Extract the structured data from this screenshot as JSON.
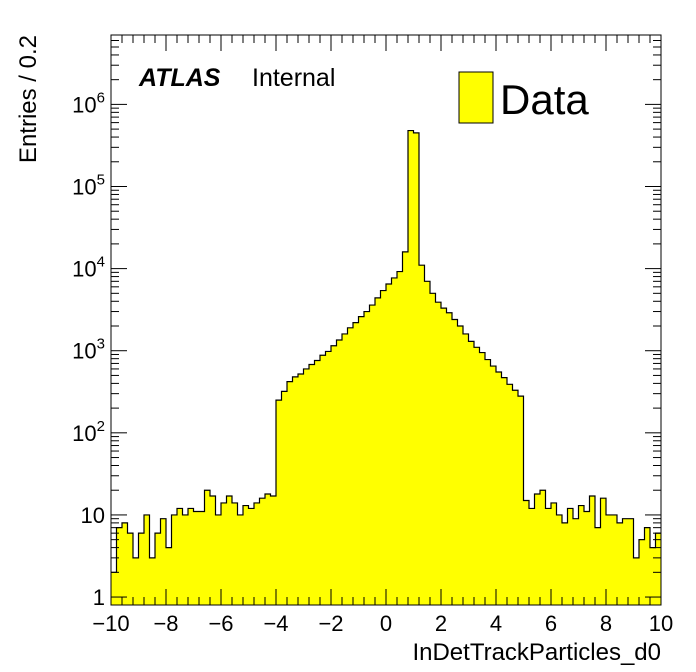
{
  "chart_data": {
    "type": "bar",
    "histogram": true,
    "xlabel": "InDetTrackParticles_d0",
    "ylabel": "Entries / 0.2",
    "yscale": "log",
    "xlim": [
      -10,
      10
    ],
    "ylim": [
      0.8,
      7000000
    ],
    "bin_width": 0.2,
    "fill_color": "#ffff00",
    "line_color": "#000000",
    "x_ticks": [
      "−10",
      "−8",
      "−6",
      "−4",
      "−2",
      "0",
      "2",
      "4",
      "6",
      "8",
      "10"
    ],
    "x_tick_values": [
      -10,
      -8,
      -6,
      -4,
      -2,
      0,
      2,
      4,
      6,
      8,
      10
    ],
    "y_ticks": [
      {
        "value": 1,
        "base": "1",
        "exp": ""
      },
      {
        "value": 10,
        "base": "10",
        "exp": ""
      },
      {
        "value": 100,
        "base": "10",
        "exp": "2"
      },
      {
        "value": 1000,
        "base": "10",
        "exp": "3"
      },
      {
        "value": 10000,
        "base": "10",
        "exp": "4"
      },
      {
        "value": 100000,
        "base": "10",
        "exp": "5"
      },
      {
        "value": 1000000,
        "base": "10",
        "exp": "6"
      }
    ],
    "experiment_label": "ATLAS",
    "status_label": "Internal",
    "legend": [
      {
        "name": "Data",
        "color": "#ffff00"
      }
    ],
    "legend_position": "top-right",
    "values": [
      2,
      7,
      8,
      6,
      3,
      6,
      10,
      3,
      6,
      9,
      4,
      10,
      12,
      10,
      12,
      11,
      11,
      20,
      17,
      10,
      14,
      17,
      14,
      10,
      13,
      12,
      14,
      16,
      18,
      17,
      250,
      320,
      420,
      480,
      520,
      600,
      680,
      760,
      880,
      980,
      1150,
      1350,
      1600,
      1900,
      2200,
      2600,
      3000,
      3600,
      4400,
      5400,
      6500,
      7700,
      9200,
      16000,
      480000,
      450000,
      11000,
      7000,
      5000,
      3900,
      3300,
      2900,
      2400,
      2000,
      1600,
      1300,
      1100,
      950,
      780,
      650,
      550,
      470,
      390,
      330,
      280,
      15,
      12,
      18,
      20,
      12,
      14,
      10,
      8,
      12,
      9,
      13,
      11,
      17,
      7,
      16,
      10,
      10,
      8,
      9,
      9,
      3,
      5,
      7,
      4,
      6
    ]
  }
}
